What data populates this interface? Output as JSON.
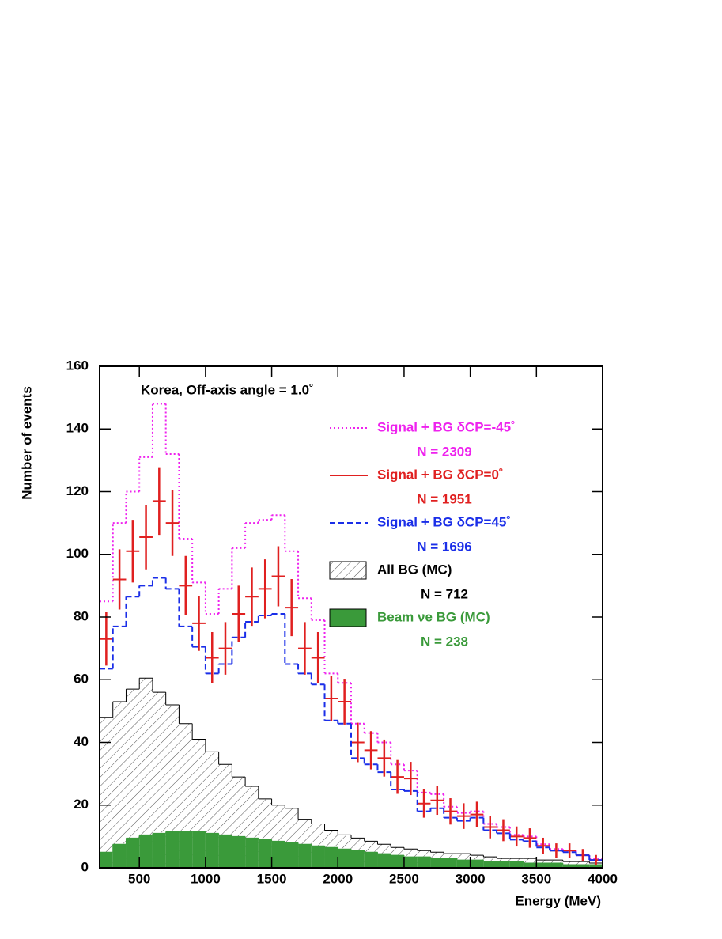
{
  "chart_data": {
    "type": "histogram",
    "annotation": "Korea, Off-axis angle = 1.0˚",
    "y_label": "Number of events",
    "x_label": "Energy (MeV)",
    "xlim": [
      200,
      4000
    ],
    "ylim": [
      0,
      160
    ],
    "xticks": [
      500,
      1000,
      1500,
      2000,
      2500,
      3000,
      3500,
      4000
    ],
    "yticks": [
      0,
      20,
      40,
      60,
      80,
      100,
      120,
      140,
      160
    ],
    "bins": [
      200,
      300,
      400,
      500,
      600,
      700,
      800,
      900,
      1000,
      1100,
      1200,
      1300,
      1400,
      1500,
      1600,
      1700,
      1800,
      1900,
      2000,
      2100,
      2200,
      2300,
      2400,
      2500,
      2600,
      2700,
      2800,
      2900,
      3000,
      3100,
      3200,
      3300,
      3400,
      3500,
      3600,
      3700,
      3800,
      3900,
      4000
    ],
    "series": [
      {
        "name": "All BG (MC)",
        "n_label": "N =   712",
        "style": "hatched",
        "color": "#000000",
        "values": [
          48,
          53,
          57,
          60.5,
          56,
          52,
          46,
          41,
          37,
          33,
          29,
          26,
          22,
          20,
          19,
          15.5,
          14,
          12,
          10.5,
          9.5,
          8.5,
          7.5,
          6.5,
          6,
          5.5,
          5,
          4.5,
          4.5,
          4,
          3.5,
          3,
          3,
          3,
          2.5,
          2.5,
          2,
          2,
          1.5
        ]
      },
      {
        "name": "Beam νe BG (MC)",
        "n_label": "N =  238",
        "style": "filled",
        "color": "#3a9a3a",
        "values": [
          5,
          7.5,
          9.5,
          10.5,
          11,
          11.5,
          11.5,
          11.5,
          11,
          10.5,
          10,
          9.5,
          9,
          8.5,
          8,
          7.5,
          7,
          6.5,
          6,
          5.5,
          5,
          4.5,
          4,
          3.5,
          3.5,
          3,
          3,
          2.5,
          2.5,
          2,
          2,
          2,
          1.5,
          1.5,
          1.5,
          1,
          1,
          1
        ]
      },
      {
        "name": "Signal + BG δCP=-45˚",
        "n_label": "N =  2309",
        "style": "dotted",
        "color": "#ee22ee",
        "values": [
          85,
          110,
          120,
          131,
          148,
          132,
          105,
          91,
          81,
          89,
          102,
          110,
          111,
          112.5,
          101,
          86,
          79,
          62,
          59,
          46,
          43,
          40,
          33,
          31,
          24,
          23.5,
          19.5,
          17.5,
          18,
          14,
          13,
          10.5,
          10,
          7.5,
          6,
          5.5,
          4,
          3
        ]
      },
      {
        "name": "Signal + BG δCP=0˚",
        "n_label": "N =  1951",
        "style": "points",
        "color": "#e02020",
        "values": [
          73,
          92,
          101,
          105.5,
          117,
          110,
          90,
          78,
          67,
          70,
          81,
          86.5,
          89,
          93,
          83,
          70,
          67,
          54,
          53,
          40,
          37.5,
          35,
          29,
          28.5,
          20.5,
          21.5,
          18,
          16.5,
          17,
          13,
          12,
          10,
          9.5,
          7,
          5.5,
          5.5,
          4,
          2.5
        ],
        "errors": [
          8.5,
          9.6,
          10,
          10.3,
          10.8,
          10.5,
          9.5,
          8.8,
          8.2,
          8.4,
          9,
          9.3,
          9.4,
          9.6,
          9.1,
          8.4,
          8.2,
          7.3,
          7.3,
          6.3,
          6.1,
          5.9,
          5.4,
          5.3,
          4.5,
          4.6,
          4.2,
          4.1,
          4.1,
          3.6,
          3.5,
          3.2,
          3.1,
          2.6,
          2.3,
          2.3,
          2,
          1.6
        ]
      },
      {
        "name": "Signal + BG δCP=45˚",
        "n_label": "N = 1696",
        "style": "dashed",
        "color": "#1a2ee8",
        "values": [
          63.5,
          77,
          86.5,
          90,
          92.5,
          89,
          77,
          70.5,
          62,
          65,
          73.5,
          78.5,
          80.5,
          81,
          65,
          62,
          58.5,
          47,
          46,
          35,
          33,
          30.5,
          25,
          24.5,
          18,
          19,
          16,
          15,
          16,
          12,
          11,
          9,
          8.5,
          6.5,
          5.5,
          5,
          4,
          2.5
        ]
      }
    ]
  }
}
